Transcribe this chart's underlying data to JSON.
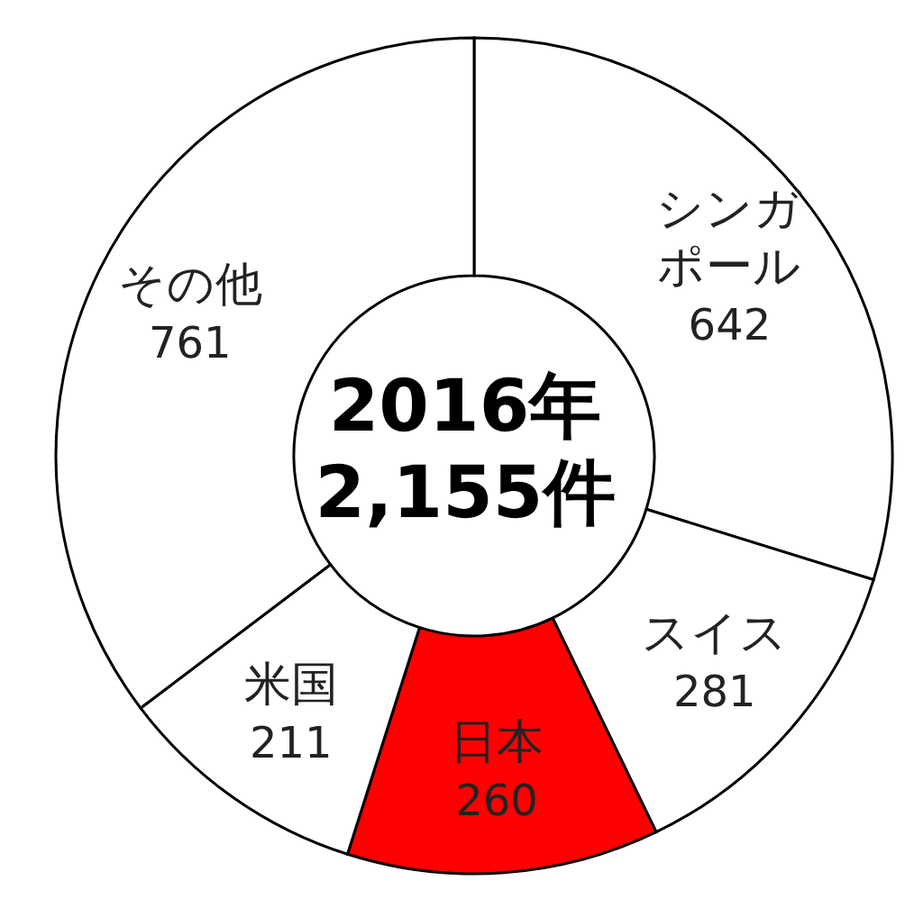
{
  "chart_data": {
    "type": "donut",
    "title": "2016年",
    "subtitle": "2,155件",
    "categories": [
      "シンガポール",
      "スイス",
      "日本",
      "米国",
      "その他"
    ],
    "values": [
      642,
      281,
      260,
      211,
      761
    ],
    "colors": [
      "#ffffff",
      "#ffffff",
      "#ff0000",
      "#ffffff",
      "#ffffff"
    ],
    "data_labels": true
  }
}
